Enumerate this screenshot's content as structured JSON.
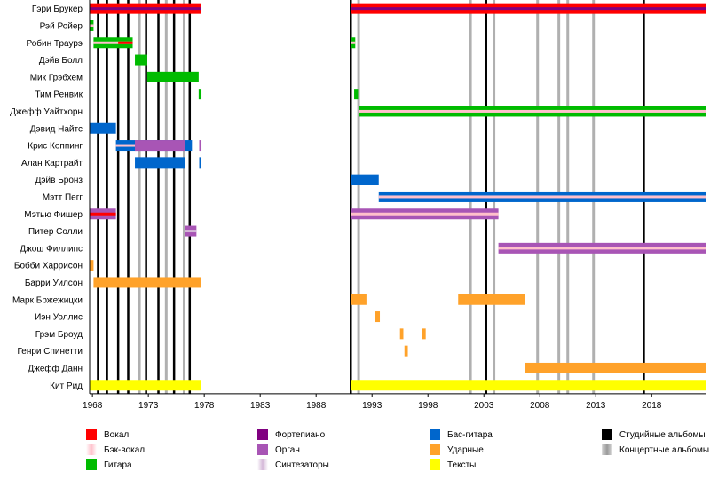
{
  "chart_data": {
    "type": "timeline",
    "x_ticks": [
      1968,
      1973,
      1978,
      1983,
      1988,
      1993,
      1998,
      2003,
      2008,
      2013,
      2018
    ],
    "xlim": [
      1967.75,
      2022.9
    ],
    "members": [
      "Гэри Брукер",
      "Рэй Ройер",
      "Робин Траурэ",
      "Дэйв Болл",
      "Мик Грэбхем",
      "Тим Ренвик",
      "Джефф Уайтхорн",
      "Дэвид Найтс",
      "Крис Коппинг",
      "Алан Картрайт",
      "Дэйв Бронз",
      "Мэтт Пегг",
      "Мэтью Фишер",
      "Питер Солли",
      "Джош Филлипс",
      "Бобби Харрисон",
      "Барри Уилсон",
      "Марк Бржежицки",
      "Иэн Уоллис",
      "Грэм Броуд",
      "Генри Спинетти",
      "Джефф Данн",
      "Кит Рид"
    ],
    "roles": {
      "vocals": "#ff0000",
      "backing_vocals": "#ffc0cb",
      "guitar": "#00bb00",
      "piano": "#800080",
      "organ": "#a855b5",
      "synth": "#d4b8d8",
      "bass": "#0066cc",
      "drums": "#ffa22a",
      "lyrics": "#ffff00"
    },
    "bars": [
      {
        "member": "Гэри Брукер",
        "role": "vocals",
        "start": 1967.75,
        "end": 1977.7
      },
      {
        "member": "Гэри Брукер",
        "role": "piano",
        "start": 1967.75,
        "end": 1977.7,
        "thin": true
      },
      {
        "member": "Гэри Брукер",
        "role": "vocals",
        "start": 1991.1,
        "end": 2022.9
      },
      {
        "member": "Гэри Брукер",
        "role": "piano",
        "start": 1991.1,
        "end": 2022.9,
        "thin": true
      },
      {
        "member": "Рэй Ройер",
        "role": "guitar",
        "start": 1967.75,
        "end": 1968.1
      },
      {
        "member": "Рэй Ройер",
        "role": "backing_vocals",
        "start": 1967.75,
        "end": 1968.1,
        "thin": true
      },
      {
        "member": "Робин Траурэ",
        "role": "guitar",
        "start": 1968.1,
        "end": 1971.6
      },
      {
        "member": "Робин Траурэ",
        "role": "backing_vocals",
        "start": 1968.1,
        "end": 1971.6,
        "thin": true
      },
      {
        "member": "Робин Траурэ",
        "role": "vocals",
        "start": 1970.3,
        "end": 1971.6,
        "thin": true
      },
      {
        "member": "Робин Траурэ",
        "role": "guitar",
        "start": 1991.1,
        "end": 1991.5
      },
      {
        "member": "Робин Траурэ",
        "role": "backing_vocals",
        "start": 1991.1,
        "end": 1991.5,
        "thin": true
      },
      {
        "member": "Дэйв Болл",
        "role": "guitar",
        "start": 1971.8,
        "end": 1972.9
      },
      {
        "member": "Мик Грэбхем",
        "role": "guitar",
        "start": 1972.9,
        "end": 1977.5
      },
      {
        "member": "Тим Ренвик",
        "role": "guitar",
        "start": 1977.5,
        "end": 1977.75
      },
      {
        "member": "Тим Ренвик",
        "role": "guitar",
        "start": 1991.4,
        "end": 1991.75
      },
      {
        "member": "Джефф Уайтхорн",
        "role": "guitar",
        "start": 1991.8,
        "end": 2022.9
      },
      {
        "member": "Джефф Уайтхорн",
        "role": "backing_vocals",
        "start": 1991.8,
        "end": 2022.9,
        "thin": true
      },
      {
        "member": "Дэвид Найтс",
        "role": "bass",
        "start": 1967.75,
        "end": 1970.1
      },
      {
        "member": "Крис Коппинг",
        "role": "bass",
        "start": 1970.1,
        "end": 1976.9
      },
      {
        "member": "Крис Коппинг",
        "role": "organ",
        "start": 1971.8,
        "end": 1976.3
      },
      {
        "member": "Крис Коппинг",
        "role": "backing_vocals",
        "start": 1970.1,
        "end": 1971.8,
        "thin": true
      },
      {
        "member": "Крис Коппинг",
        "role": "organ",
        "start": 1977.55,
        "end": 1977.75
      },
      {
        "member": "Алан Картрайт",
        "role": "bass",
        "start": 1971.8,
        "end": 1976.3
      },
      {
        "member": "Алан Картрайт",
        "role": "bass",
        "start": 1977.55,
        "end": 1977.7
      },
      {
        "member": "Дэйв Бронз",
        "role": "bass",
        "start": 1991.1,
        "end": 1993.6
      },
      {
        "member": "Мэтт Пегг",
        "role": "bass",
        "start": 1993.6,
        "end": 2022.9
      },
      {
        "member": "Мэтт Пегг",
        "role": "backing_vocals",
        "start": 1993.6,
        "end": 2022.9,
        "thin": true
      },
      {
        "member": "Мэтью Фишер",
        "role": "organ",
        "start": 1967.75,
        "end": 1970.1
      },
      {
        "member": "Мэтью Фишер",
        "role": "vocals",
        "start": 1967.75,
        "end": 1970.1,
        "thin": true
      },
      {
        "member": "Мэтью Фишер",
        "role": "organ",
        "start": 1991.1,
        "end": 2004.3
      },
      {
        "member": "Мэтью Фишер",
        "role": "backing_vocals",
        "start": 1991.1,
        "end": 2004.3,
        "thin": true
      },
      {
        "member": "Питер Солли",
        "role": "organ",
        "start": 1976.3,
        "end": 1977.3
      },
      {
        "member": "Питер Солли",
        "role": "synth",
        "start": 1976.3,
        "end": 1977.3,
        "thin": true
      },
      {
        "member": "Джош Филлипс",
        "role": "organ",
        "start": 2004.3,
        "end": 2022.9
      },
      {
        "member": "Джош Филлипс",
        "role": "backing_vocals",
        "start": 2004.3,
        "end": 2022.9,
        "thin": true
      },
      {
        "member": "Бобби Харрисон",
        "role": "drums",
        "start": 1967.75,
        "end": 1968.1
      },
      {
        "member": "Барри Уилсон",
        "role": "drums",
        "start": 1968.1,
        "end": 1977.7
      },
      {
        "member": "Марк Бржежицки",
        "role": "drums",
        "start": 1991.1,
        "end": 1992.5
      },
      {
        "member": "Марк Бржежицки",
        "role": "drums",
        "start": 2000.7,
        "end": 2006.7
      },
      {
        "member": "Иэн Уоллис",
        "role": "drums",
        "start": 1993.3,
        "end": 1993.7
      },
      {
        "member": "Грэм Броуд",
        "role": "drums",
        "start": 1995.5,
        "end": 1995.8
      },
      {
        "member": "Грэм Броуд",
        "role": "drums",
        "start": 1997.5,
        "end": 1997.8
      },
      {
        "member": "Генри Спинетти",
        "role": "drums",
        "start": 1995.9,
        "end": 1996.2
      },
      {
        "member": "Джефф Данн",
        "role": "drums",
        "start": 2006.7,
        "end": 2022.9
      },
      {
        "member": "Кит Рид",
        "role": "lyrics",
        "start": 1967.75,
        "end": 1977.7
      },
      {
        "member": "Кит Рид",
        "role": "lyrics",
        "start": 1991.1,
        "end": 2022.9
      }
    ],
    "studio_albums": [
      1968.5,
      1969.3,
      1970.3,
      1971.2,
      1972.8,
      1973.9,
      1975.3,
      1976.7,
      1991.1,
      2003.2,
      2017.3
    ],
    "live_albums": [
      1972.2,
      1974.6,
      1976.2,
      1991.8,
      2001.8,
      2003.9,
      2007.8,
      2009.7,
      2010.5,
      2012.8
    ]
  },
  "legend": [
    {
      "label": "Вокал",
      "color": "#ff0000"
    },
    {
      "label": "Бэк-вокал",
      "color": "#ffc0cb"
    },
    {
      "label": "Гитара",
      "color": "#00bb00"
    },
    {
      "label": "Фортепиано",
      "color": "#800080"
    },
    {
      "label": "Орган",
      "color": "#a855b5"
    },
    {
      "label": "Синтезаторы",
      "color": "#d4b8d8"
    },
    {
      "label": "Бас-гитара",
      "color": "#0066cc"
    },
    {
      "label": "Ударные",
      "color": "#ffa22a"
    },
    {
      "label": "Тексты",
      "color": "#ffff00"
    },
    {
      "label": "Студийные альбомы",
      "color": "#000000"
    },
    {
      "label": "Концертные альбомы",
      "color": "#aaaaaa"
    }
  ]
}
